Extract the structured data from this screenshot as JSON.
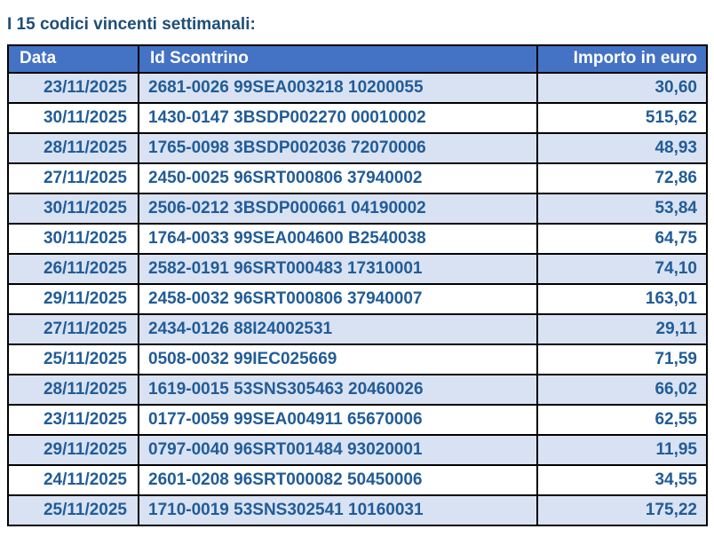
{
  "title": "I 15 codici vincenti settimanali:",
  "table": {
    "columns": [
      "Data",
      "Id Scontrino",
      "Importo in euro"
    ],
    "rows": [
      {
        "data": "23/11/2025",
        "id_scontrino": "2681-0026 99SEA003218 10200055",
        "importo": "30,60"
      },
      {
        "data": "30/11/2025",
        "id_scontrino": "1430-0147 3BSDP002270 00010002",
        "importo": "515,62"
      },
      {
        "data": "28/11/2025",
        "id_scontrino": "1765-0098 3BSDP002036 72070006",
        "importo": "48,93"
      },
      {
        "data": "27/11/2025",
        "id_scontrino": "2450-0025 96SRT000806 37940002",
        "importo": "72,86"
      },
      {
        "data": "30/11/2025",
        "id_scontrino": "2506-0212 3BSDP000661 04190002",
        "importo": "53,84"
      },
      {
        "data": "30/11/2025",
        "id_scontrino": "1764-0033 99SEA004600 B2540038",
        "importo": "64,75"
      },
      {
        "data": "26/11/2025",
        "id_scontrino": "2582-0191 96SRT000483 17310001",
        "importo": "74,10"
      },
      {
        "data": "29/11/2025",
        "id_scontrino": "2458-0032 96SRT000806 37940007",
        "importo": "163,01"
      },
      {
        "data": "27/11/2025",
        "id_scontrino": "2434-0126 88I24002531",
        "importo": "29,11"
      },
      {
        "data": "25/11/2025",
        "id_scontrino": "0508-0032 99IEC025669",
        "importo": "71,59"
      },
      {
        "data": "28/11/2025",
        "id_scontrino": "1619-0015 53SNS305463 20460026",
        "importo": "66,02"
      },
      {
        "data": "23/11/2025",
        "id_scontrino": "0177-0059 99SEA004911 65670006",
        "importo": "62,55"
      },
      {
        "data": "29/11/2025",
        "id_scontrino": "0797-0040 96SRT001484 93020001",
        "importo": "11,95"
      },
      {
        "data": "24/11/2025",
        "id_scontrino": "2601-0208 96SRT000082 50450006",
        "importo": "34,55"
      },
      {
        "data": "25/11/2025",
        "id_scontrino": "1710-0019 53SNS302541 10160031",
        "importo": "175,22"
      }
    ]
  },
  "colors": {
    "header_bg": "#4472C4",
    "header_text": "#FFFFFF",
    "row_alt_bg": "#D9E2F3",
    "row_bg": "#FFFFFF",
    "cell_text": "#215C98",
    "title_text": "#1F4E79",
    "border_color": "#000000"
  }
}
